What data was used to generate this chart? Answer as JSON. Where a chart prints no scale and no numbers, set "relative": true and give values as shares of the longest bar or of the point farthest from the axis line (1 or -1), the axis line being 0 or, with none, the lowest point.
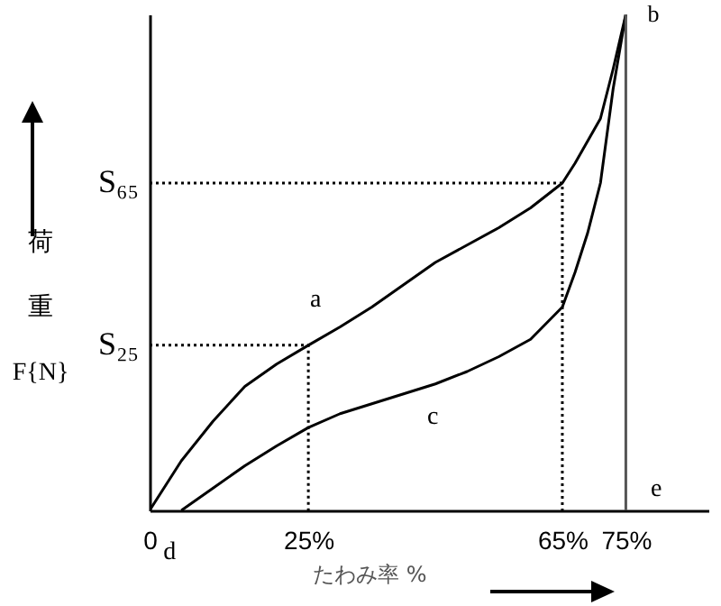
{
  "chart_data": {
    "type": "line",
    "relative": true,
    "xlabel": "たわみ率 %",
    "ylabel": "荷重 F{N}",
    "xlim": [
      0,
      88
    ],
    "xticks": [
      0,
      {
        "value": 25,
        "label": "25%"
      },
      {
        "value": 65,
        "label": "65%"
      },
      {
        "value": 75,
        "label": "75%"
      }
    ],
    "grid": false,
    "marker": "none",
    "series": [
      {
        "color": "#000000",
        "line_style": "solid",
        "x": [
          0,
          5,
          10,
          15,
          20,
          25,
          30,
          35,
          40,
          45,
          50,
          55,
          60,
          65,
          67,
          69,
          71,
          73,
          75
        ],
        "values": [
          0,
          0.1,
          0.18,
          0.25,
          0.295,
          0.333,
          0.37,
          0.41,
          0.455,
          0.5,
          0.535,
          0.57,
          0.61,
          0.66,
          0.7,
          0.745,
          0.79,
          0.89,
          1
        ]
      },
      {
        "color": "#000000",
        "line_style": "solid",
        "x": [
          5,
          10,
          15,
          20,
          25,
          30,
          35,
          40,
          45,
          50,
          55,
          60,
          65,
          67,
          69,
          71,
          73,
          75
        ],
        "values": [
          0,
          0.045,
          0.09,
          0.13,
          0.167,
          0.195,
          0.215,
          0.235,
          0.255,
          0.28,
          0.31,
          0.345,
          0.41,
          0.48,
          0.56,
          0.66,
          0.85,
          1
        ]
      },
      {
        "color": "#000000",
        "line_style": "dotted",
        "x": [
          0,
          65,
          65
        ],
        "values": [
          0.66,
          0.66,
          0
        ]
      },
      {
        "color": "#000000",
        "line_style": "dotted",
        "x": [
          0,
          25,
          25
        ],
        "values": [
          0.333,
          0.333,
          0
        ]
      }
    ],
    "ref_lines": [
      {
        "axis": "x",
        "value": 75,
        "color": "#555555"
      }
    ],
    "annotations": [
      {
        "text": "S₆₅",
        "x": 0,
        "y": 0.66
      },
      {
        "text": "S₂₅",
        "x": 0,
        "y": 0.333
      },
      "a",
      {
        "text": "b",
        "x": 75,
        "y": 1
      },
      "c",
      {
        "text": "d",
        "x": 5,
        "y": 0
      },
      "e"
    ]
  }
}
